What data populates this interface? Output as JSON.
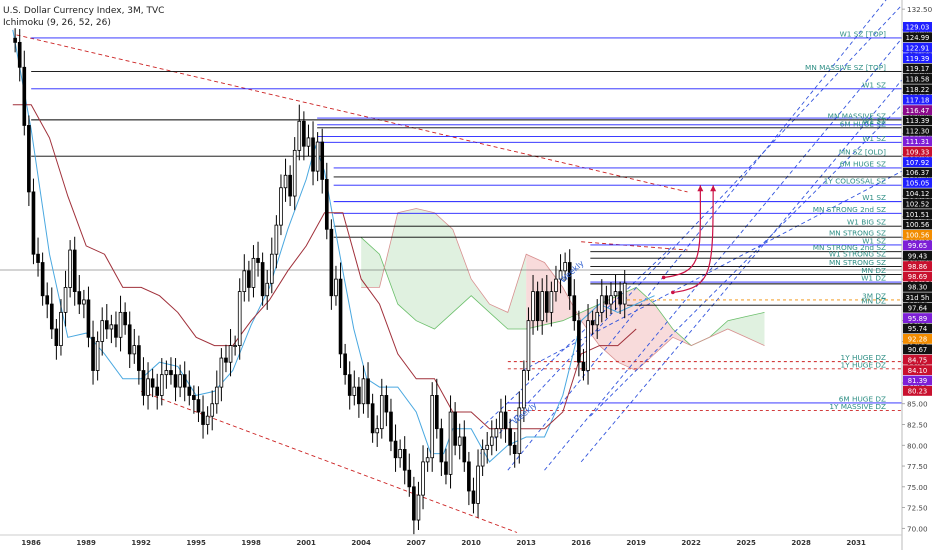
{
  "header": {
    "title": "U.S. Dollar Currency Index, 3M, TVC",
    "indicator": "Ichimoku (9, 26, 52, 26)"
  },
  "colors": {
    "up_candle": "#ffffff",
    "down_candle": "#000000",
    "zone_blue": "#1f1fff",
    "zone_black": "#000000",
    "dashed_blue": "#3355dd",
    "dashed_red": "#cc2222",
    "tenkan": "#4aa8e0",
    "kijun": "#a0303a",
    "cloud_red": "#f5cfcf",
    "cloud_green": "#d5ecd5",
    "label_text": "#2f8f85",
    "arrow": "#cc1144"
  },
  "chart_data": {
    "type": "candlestick",
    "symbol": "U.S. Dollar Currency Index",
    "timeframe": "3M",
    "x_axis": {
      "range": [
        1984.3,
        2033.5
      ],
      "ticks": [
        "1986",
        "1989",
        "1992",
        "1995",
        "1998",
        "2001",
        "2004",
        "2007",
        "2010",
        "2013",
        "2016",
        "2019",
        "2022",
        "2025",
        "2028",
        "2031"
      ],
      "tick_values": [
        1986,
        1989,
        1992,
        1995,
        1998,
        2001,
        2004,
        2007,
        2010,
        2013,
        2016,
        2019,
        2022,
        2025,
        2028,
        2031
      ]
    },
    "y_axis": {
      "range": [
        69.2,
        133.6
      ],
      "ticks": [
        "70.00",
        "72.50",
        "75.00",
        "77.50",
        "80.00",
        "82.50",
        "85.00",
        "87.50",
        "90.00",
        "92.50",
        "95.00",
        "97.50",
        "100.00",
        "102.50",
        "105.00",
        "107.50",
        "110.00",
        "112.50",
        "115.00",
        "117.50",
        "120.00",
        "122.50",
        "125.00",
        "127.50",
        "130.00",
        "132.50"
      ],
      "tick_values": [
        70,
        72.5,
        75,
        77.5,
        80,
        82.5,
        85,
        87.5,
        90,
        92.5,
        95,
        97.5,
        100,
        102.5,
        105,
        107.5,
        110,
        112.5,
        115,
        117.5,
        120,
        122.5,
        125,
        127.5,
        130,
        132.5
      ]
    },
    "candle_closes": [
      128.5,
      125.5,
      118.5,
      110.5,
      103,
      102,
      98,
      97,
      94,
      92,
      96,
      99,
      103.5,
      98.5,
      97,
      97.5,
      93,
      89,
      92.5,
      95,
      94,
      94.5,
      93,
      96,
      94.5,
      91,
      92,
      89,
      86,
      88,
      87,
      86,
      88.5,
      89,
      88.5,
      87,
      88.5,
      87,
      86,
      85.5,
      84,
      82.5,
      83.5,
      85,
      87,
      90.5,
      90,
      92,
      92,
      98.5,
      101,
      99,
      102.5,
      102,
      98,
      99.5,
      103,
      106.5,
      111,
      112.5,
      110,
      115.5,
      119,
      116,
      117,
      113,
      116.5,
      112,
      106,
      98,
      100,
      91,
      88.5,
      86,
      87,
      85,
      88,
      85,
      81.5,
      82,
      86,
      84,
      80.5,
      78.5,
      79.5,
      77,
      75,
      71,
      74,
      78,
      78.5,
      86,
      82,
      78,
      76.5,
      84,
      80,
      81,
      78,
      74.5,
      73,
      77.5,
      79.5,
      80,
      81,
      82,
      84,
      82,
      80,
      79,
      84.5,
      89,
      95,
      98.5,
      95,
      98.5,
      96,
      98.5,
      100,
      101,
      102,
      98,
      95,
      90,
      89,
      95,
      94.5,
      96,
      98,
      97,
      98,
      98.5,
      97,
      99.5
    ],
    "candle_opens_first": 129,
    "indicators": {
      "name": "Ichimoku",
      "params": [
        9,
        26,
        52,
        26
      ],
      "tenkan_sen": [
        [
          1985,
          130
        ],
        [
          1986,
          118
        ],
        [
          1987,
          103
        ],
        [
          1988,
          93
        ],
        [
          1989,
          93.5
        ],
        [
          1990,
          91
        ],
        [
          1991,
          88
        ],
        [
          1992,
          88
        ],
        [
          1993,
          90
        ],
        [
          1994,
          89.5
        ],
        [
          1995,
          86
        ],
        [
          1996,
          86.5
        ],
        [
          1997,
          89
        ],
        [
          1998,
          94.5
        ],
        [
          1999,
          99
        ],
        [
          2000,
          106
        ],
        [
          2001,
          112
        ],
        [
          2001.5,
          116
        ],
        [
          2002,
          113
        ],
        [
          2003,
          101
        ],
        [
          2003.6,
          94
        ],
        [
          2004.3,
          88
        ],
        [
          2005,
          87
        ],
        [
          2006,
          87
        ],
        [
          2007,
          84
        ],
        [
          2007.8,
          79
        ],
        [
          2008.5,
          79
        ],
        [
          2009,
          82
        ],
        [
          2010,
          82
        ],
        [
          2011,
          78
        ],
        [
          2012,
          80
        ],
        [
          2013,
          81
        ],
        [
          2014,
          81
        ],
        [
          2015,
          86
        ],
        [
          2016,
          95
        ],
        [
          2017,
          97
        ],
        [
          2018,
          96
        ],
        [
          2019,
          97
        ],
        [
          2020,
          98
        ]
      ],
      "kijun_sen": [
        [
          1985,
          121
        ],
        [
          1986,
          121
        ],
        [
          1987,
          117
        ],
        [
          1988,
          110
        ],
        [
          1989,
          104
        ],
        [
          1990,
          103
        ],
        [
          1991,
          99
        ],
        [
          1992,
          99
        ],
        [
          1993,
          98
        ],
        [
          1994,
          96
        ],
        [
          1995,
          93
        ],
        [
          1996,
          92
        ],
        [
          1997,
          92
        ],
        [
          1998,
          95
        ],
        [
          1999,
          97.5
        ],
        [
          2000,
          101
        ],
        [
          2001,
          104
        ],
        [
          2002,
          108
        ],
        [
          2003,
          108
        ],
        [
          2004,
          100
        ],
        [
          2005,
          97
        ],
        [
          2006,
          91
        ],
        [
          2007,
          88
        ],
        [
          2008,
          88
        ],
        [
          2009,
          84
        ],
        [
          2010,
          84
        ],
        [
          2011,
          82
        ],
        [
          2012,
          82
        ],
        [
          2013,
          82
        ],
        [
          2014,
          82
        ],
        [
          2015,
          84
        ],
        [
          2016,
          91
        ],
        [
          2017,
          92
        ],
        [
          2018,
          92
        ],
        [
          2019,
          94
        ]
      ],
      "senkou_a": [
        [
          2004,
          105
        ],
        [
          2005,
          103
        ],
        [
          2006,
          97
        ],
        [
          2007,
          95
        ],
        [
          2008,
          94
        ],
        [
          2009,
          96
        ],
        [
          2010,
          98
        ],
        [
          2011,
          96
        ],
        [
          2012,
          94
        ],
        [
          2013,
          94
        ],
        [
          2014,
          94.5
        ],
        [
          2015,
          95
        ],
        [
          2016,
          96
        ],
        [
          2017,
          97
        ],
        [
          2018,
          98
        ],
        [
          2019,
          99
        ],
        [
          2020,
          97
        ],
        [
          2021,
          94
        ],
        [
          2022,
          92
        ],
        [
          2023,
          93
        ],
        [
          2024,
          95
        ],
        [
          2025,
          95.5
        ],
        [
          2026,
          96
        ]
      ],
      "senkou_b": [
        [
          2004,
          99
        ],
        [
          2005,
          99
        ],
        [
          2006,
          108
        ],
        [
          2007,
          108.5
        ],
        [
          2008,
          108
        ],
        [
          2009,
          106
        ],
        [
          2010,
          100
        ],
        [
          2011,
          97
        ],
        [
          2012,
          96
        ],
        [
          2013,
          103
        ],
        [
          2014,
          102
        ],
        [
          2015,
          99
        ],
        [
          2016,
          95
        ],
        [
          2017,
          92
        ],
        [
          2018,
          90
        ],
        [
          2019,
          89
        ],
        [
          2020,
          91
        ],
        [
          2021,
          93
        ],
        [
          2022,
          92
        ],
        [
          2023,
          93
        ],
        [
          2024,
          94
        ],
        [
          2025,
          93
        ],
        [
          2026,
          92
        ]
      ]
    },
    "zones": [
      {
        "price": 129.03,
        "label": "W1 SZ [TOP]",
        "price_tag": "129.03",
        "color": "blue",
        "start": 1986
      },
      {
        "price": 124.99,
        "label": "MN MASSIVE SZ [TOP]",
        "price_tag": "124.99",
        "color": "black",
        "start": 1986
      },
      {
        "price": 122.91,
        "label": "W1 SZ",
        "price_tag": "122.91",
        "color": "blue",
        "start": 1986
      },
      {
        "price": 119.39,
        "label": "",
        "price_tag": "119.39",
        "color": "blue",
        "start": 2001.6
      },
      {
        "price": 119.17,
        "label": "MN MASSIVE SZ",
        "price_tag": "119.17",
        "color": "black",
        "start": 1986
      },
      {
        "price": 118.58,
        "label": "W1 SZ",
        "price_tag": "118.58",
        "color": "blue",
        "start": 2001.6
      },
      {
        "price": 118.22,
        "label": "6M HUGE SZ",
        "price_tag": "118.22",
        "color": "black",
        "start": 2001.6
      },
      {
        "price": 117.18,
        "label": "",
        "price_tag": "117.18",
        "color": "blue",
        "start": 2001.6
      },
      {
        "price": 116.47,
        "label": "W1 SZ",
        "price_tag": "116.47",
        "color": "blue",
        "start": 2001.6
      },
      {
        "price": 114.8,
        "label": "MN SZ [OLD]",
        "price_tag": "",
        "color": "black",
        "start": 1986
      },
      {
        "price": 113.39,
        "label": "6M HUGE SZ",
        "price_tag": "113.39",
        "color": "blue",
        "start": 2002.5
      },
      {
        "price": 112.3,
        "label": "",
        "price_tag": "112.30",
        "color": "black",
        "start": 2002.5
      },
      {
        "price": 111.31,
        "label": "1Y COLOSSAL SZ",
        "price_tag": "111.31",
        "color": "blue",
        "start": 2002.5
      },
      {
        "price": 109.33,
        "label": "W1 SZ",
        "price_tag": "109.33",
        "color": "blue",
        "start": 2002.5
      },
      {
        "price": 107.92,
        "label": "MN STRONG 2nd SZ",
        "price_tag": "107.92",
        "color": "blue",
        "start": 2002.5
      },
      {
        "price": 106.37,
        "label": "W1 BIG SZ",
        "price_tag": "106.37",
        "color": "black",
        "start": 2002.5
      },
      {
        "price": 105.05,
        "label": "MN STRONG SZ",
        "price_tag": "105.05",
        "color": "black",
        "start": 2002.5
      },
      {
        "price": 104.12,
        "label": "W1 SZ",
        "price_tag": "104.12",
        "color": "blue",
        "start": 2016.5
      },
      {
        "price": 103.3,
        "label": "MN STRONG 2nd SZ",
        "price_tag": "",
        "color": "black",
        "start": 2016.5
      },
      {
        "price": 102.52,
        "label": "W1 STRONG SZ",
        "price_tag": "102.52",
        "color": "black",
        "start": 2016.5
      },
      {
        "price": 101.51,
        "label": "MN STRONG SZ",
        "price_tag": "101.51",
        "color": "black",
        "start": 2016.5
      },
      {
        "price": 100.56,
        "label": "MN DZ",
        "price_tag": "100.56",
        "color": "black",
        "start": 2016.5
      },
      {
        "price": 99.65,
        "label": "W1 DZ",
        "price_tag": "99.65",
        "color": "blue",
        "start": 2016.5
      },
      {
        "price": 99.43,
        "label": "",
        "price_tag": "99.43",
        "color": "black",
        "start": 2016.5
      },
      {
        "price": 97.5,
        "label": "3M DZ",
        "price_tag": "",
        "color": "orange",
        "start": 2018.5
      },
      {
        "price": 96.86,
        "label": "MN DZ",
        "price_tag": "96.86",
        "color": "black",
        "start": 2018.5
      },
      {
        "price": 90.07,
        "label": "1Y HUGE DZ",
        "price_tag": "90.07",
        "color": "red",
        "start": 2012
      },
      {
        "price": 89.2,
        "label": "1Y HUGE DZ",
        "price_tag": "",
        "color": "red",
        "start": 2012
      },
      {
        "price": 85.1,
        "label": "6M HUGE DZ",
        "price_tag": "",
        "color": "blue",
        "start": 2012
      },
      {
        "price": 84.2,
        "label": "1Y MASSIVE DZ",
        "price_tag": "",
        "color": "red",
        "start": 2012
      }
    ],
    "price_scale_tags": [
      {
        "value": "129.03",
        "bg": "#1f1fff"
      },
      {
        "value": "124.99",
        "bg": "#111111"
      },
      {
        "value": "122.91",
        "bg": "#1f1fff"
      },
      {
        "value": "119.39",
        "bg": "#1f1fff"
      },
      {
        "value": "119.17",
        "bg": "#111111"
      },
      {
        "value": "118.58",
        "bg": "#111111"
      },
      {
        "value": "118.22",
        "bg": "#111111"
      },
      {
        "value": "117.18",
        "bg": "#1f1fff"
      },
      {
        "value": "116.47",
        "bg": "#8b0a8b"
      },
      {
        "value": "113.39",
        "bg": "#111111"
      },
      {
        "value": "112.30",
        "bg": "#111111"
      },
      {
        "value": "111.31",
        "bg": "#7d1fd6"
      },
      {
        "value": "109.33",
        "bg": "#c8102e"
      },
      {
        "value": "107.92",
        "bg": "#1f1fff"
      },
      {
        "value": "106.37",
        "bg": "#111111"
      },
      {
        "value": "105.05",
        "bg": "#1f1fff"
      },
      {
        "value": "104.12",
        "bg": "#111111"
      },
      {
        "value": "102.52",
        "bg": "#111111"
      },
      {
        "value": "101.51",
        "bg": "#111111"
      },
      {
        "value": "100.56",
        "bg": "#111111"
      },
      {
        "value": "100.56",
        "bg": "#f28c00"
      },
      {
        "value": "99.65",
        "bg": "#7d1fd6"
      },
      {
        "value": "99.43",
        "bg": "#111111"
      },
      {
        "value": "98.86",
        "bg": "#c8102e"
      },
      {
        "value": "98.69",
        "bg": "#c8102e"
      },
      {
        "value": "98.30",
        "bg": "#111111"
      },
      {
        "value": "31d 5h",
        "bg": "#111111"
      },
      {
        "value": "97.64",
        "bg": "#111111"
      },
      {
        "value": "95.89",
        "bg": "#7d1fd6"
      },
      {
        "value": "95.74",
        "bg": "#111111"
      },
      {
        "value": "92.28",
        "bg": "#f28c00"
      },
      {
        "value": "90.67",
        "bg": "#111111"
      },
      {
        "value": "84.75",
        "bg": "#c8102e"
      },
      {
        "value": "84.10",
        "bg": "#c8102e"
      },
      {
        "value": "81.39",
        "bg": "#7d1fd6"
      },
      {
        "value": "80.23",
        "bg": "#c8102e"
      }
    ],
    "annotations": [
      "Weekly",
      "Weekly"
    ]
  }
}
